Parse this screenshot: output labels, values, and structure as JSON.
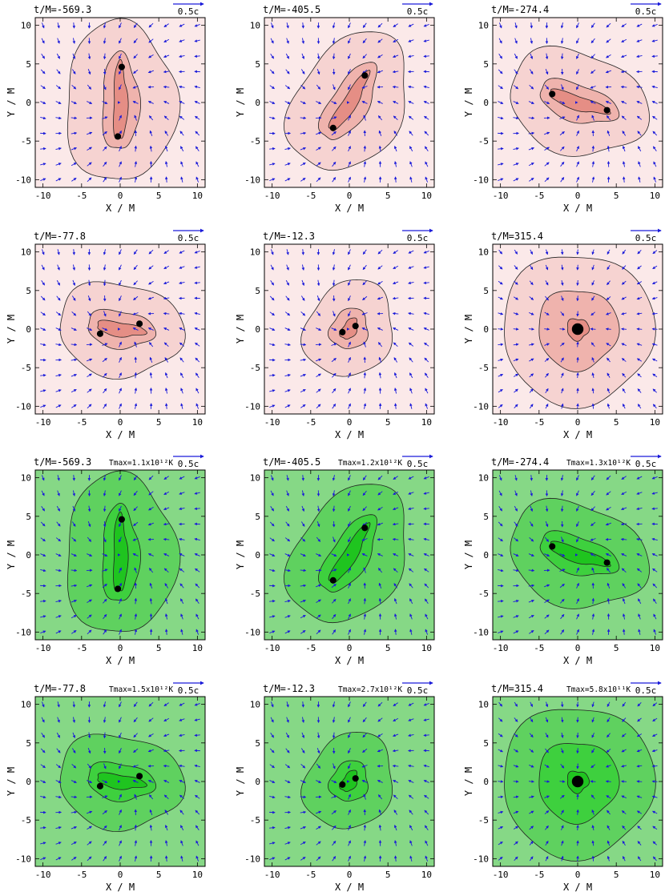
{
  "chart_data": [
    {
      "type": "contour",
      "xlabel": "X / M",
      "ylabel": "Y / M",
      "xlim": [
        -11,
        11
      ],
      "ylim": [
        -11,
        11
      ],
      "xticks": [
        -10,
        -5,
        0,
        5,
        10
      ],
      "yticks": [
        -10,
        -5,
        0,
        5,
        10
      ],
      "velocity_scale_label": "0.5c",
      "colormap": "red"
    },
    {
      "type": "contour",
      "xlabel": "X / M",
      "ylabel": "Y / M",
      "xlim": [
        -11,
        11
      ],
      "ylim": [
        -11,
        11
      ],
      "xticks": [
        -10,
        -5,
        0,
        5,
        10
      ],
      "yticks": [
        -10,
        -5,
        0,
        5,
        10
      ],
      "velocity_scale_label": "0.5c",
      "colormap": "green"
    }
  ],
  "panels": [
    {
      "title": "t/M=-569.3",
      "tmax": "",
      "sep": 4.5,
      "ang": 90,
      "bh": [
        [
          0.2,
          4.6
        ],
        [
          -0.3,
          -4.4
        ]
      ],
      "r": 0.42
    },
    {
      "title": "t/M=-405.5",
      "tmax": "",
      "sep": 3.9,
      "ang": 58,
      "bh": [
        [
          2.0,
          3.5
        ],
        [
          -2.1,
          -3.3
        ]
      ],
      "r": 0.42
    },
    {
      "title": "t/M=-274.4",
      "tmax": "",
      "sep": 3.5,
      "ang": -18,
      "bh": [
        [
          -3.3,
          1.1
        ],
        [
          3.8,
          -1.0
        ]
      ],
      "r": 0.42
    },
    {
      "title": "t/M=-77.8",
      "tmax": "",
      "sep": 2.6,
      "ang": -8,
      "bh": [
        [
          -2.6,
          -0.6
        ],
        [
          2.5,
          0.7
        ]
      ],
      "r": 0.42
    },
    {
      "title": "t/M=-12.3",
      "tmax": "",
      "sep": 0.9,
      "ang": 60,
      "bh": [
        [
          -0.9,
          -0.4
        ],
        [
          0.8,
          0.4
        ]
      ],
      "r": 0.42
    },
    {
      "title": "t/M=315.4",
      "tmax": "",
      "sep": 0,
      "ang": 0,
      "bh": [
        [
          0,
          0
        ]
      ],
      "r": 0.75
    },
    {
      "title": "t/M=-569.3",
      "tmax": "1.1x10¹²K",
      "sep": 4.5,
      "ang": 90,
      "bh": [
        [
          0.2,
          4.6
        ],
        [
          -0.3,
          -4.4
        ]
      ],
      "r": 0.42
    },
    {
      "title": "t/M=-405.5",
      "tmax": "1.2x10¹²K",
      "sep": 3.9,
      "ang": 58,
      "bh": [
        [
          2.0,
          3.5
        ],
        [
          -2.1,
          -3.3
        ]
      ],
      "r": 0.42
    },
    {
      "title": "t/M=-274.4",
      "tmax": "1.3x10¹²K",
      "sep": 3.5,
      "ang": -18,
      "bh": [
        [
          -3.3,
          1.1
        ],
        [
          3.8,
          -1.0
        ]
      ],
      "r": 0.42
    },
    {
      "title": "t/M=-77.8",
      "tmax": "1.5x10¹²K",
      "sep": 2.6,
      "ang": -8,
      "bh": [
        [
          -2.6,
          -0.6
        ],
        [
          2.5,
          0.7
        ]
      ],
      "r": 0.42
    },
    {
      "title": "t/M=-12.3",
      "tmax": "2.7x10¹²K",
      "sep": 0.9,
      "ang": 60,
      "bh": [
        [
          -0.9,
          -0.4
        ],
        [
          0.8,
          0.4
        ]
      ],
      "r": 0.42
    },
    {
      "title": "t/M=315.4",
      "tmax": "5.8x10¹¹K",
      "sep": 0,
      "ang": 0,
      "bh": [
        [
          0,
          0
        ]
      ],
      "r": 0.75
    }
  ],
  "tmax_prefix": "Tmax="
}
